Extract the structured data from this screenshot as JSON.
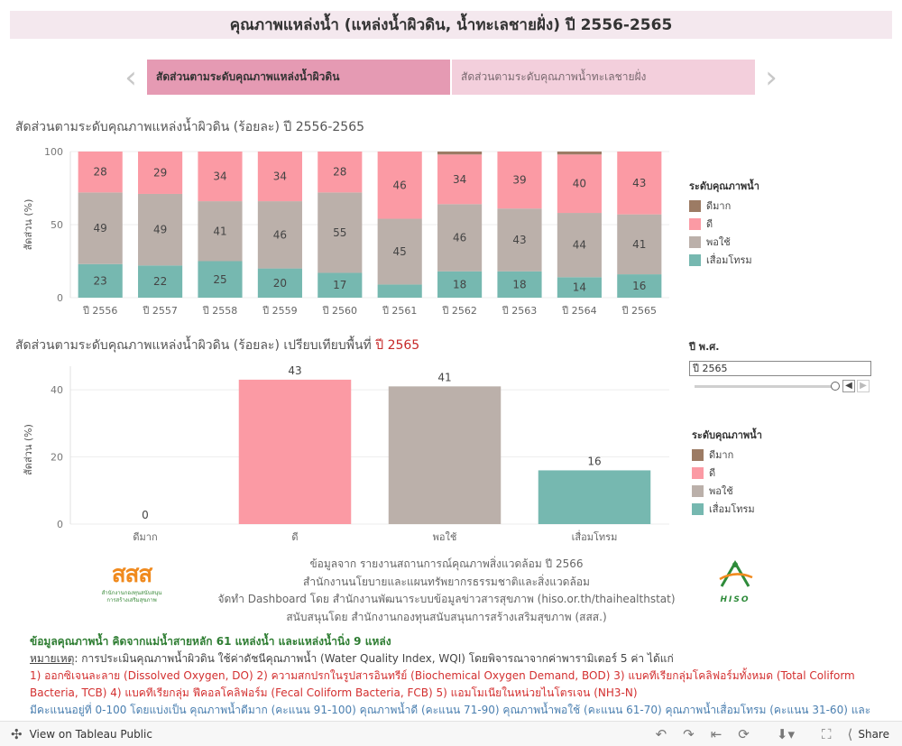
{
  "header": {
    "title": "คุณภาพแหล่งน้ำ (แหล่งน้ำผิวดิน, น้ำทะเลชายฝั่ง) ปี 2556-2565"
  },
  "nav": {
    "prev_icon": "chevron-left-icon",
    "next_icon": "chevron-right-icon",
    "tabs": [
      {
        "label": "สัดส่วนตามระดับคุณภาพแหล่งน้ำผิวดิน",
        "active": true
      },
      {
        "label": "สัดส่วนตามระดับคุณภาพน้ำทะเลชายฝั่ง",
        "active": false
      }
    ]
  },
  "colors": {
    "very_good": "#9c7b64",
    "good": "#fb9aa4",
    "fair": "#bbb0aa",
    "poor": "#76b8b0",
    "highlight": "#c62828",
    "title_bg": "#f4e8ee"
  },
  "chart1": {
    "title": "สัดส่วนตามระดับคุณภาพแหล่งน้ำผิวดิน (ร้อยละ) ปี 2556-2565"
  },
  "chart2": {
    "title_prefix": "สัดส่วนตามระดับคุณภาพแหล่งน้ำผิวดิน (ร้อยละ) เปรียบเทียบพื้นที่",
    "title_year": "ปี 2565"
  },
  "legend": {
    "title": "ระดับคุณภาพน้ำ",
    "items": [
      {
        "label": "ดีมาก",
        "color": "#9c7b64"
      },
      {
        "label": "ดี",
        "color": "#fb9aa4"
      },
      {
        "label": "พอใช้",
        "color": "#bbb0aa"
      },
      {
        "label": "เสื่อมโทรม",
        "color": "#76b8b0"
      }
    ]
  },
  "filter": {
    "label": "ปี พ.ศ.",
    "value": "ปี 2565",
    "prev_icon": "caret-left-icon",
    "next_icon": "caret-right-icon"
  },
  "chart_data": [
    {
      "type": "bar",
      "stacked": true,
      "title": "สัดส่วนตามระดับคุณภาพแหล่งน้ำผิวดิน (ร้อยละ) ปี 2556-2565",
      "ylabel": "สัดส่วน (%)",
      "ylim": [
        0,
        100
      ],
      "yticks": [
        0,
        50,
        100
      ],
      "grid": true,
      "legend": "right",
      "categories": [
        "ปี 2556",
        "ปี 2557",
        "ปี 2558",
        "ปี 2559",
        "ปี 2560",
        "ปี 2561",
        "ปี 2562",
        "ปี 2563",
        "ปี 2564",
        "ปี 2565"
      ],
      "series": [
        {
          "name": "เสื่อมโทรม",
          "color": "#76b8b0",
          "values": [
            23,
            22,
            25,
            20,
            17,
            9,
            18,
            18,
            14,
            16
          ],
          "labels": [
            "23",
            "22",
            "25",
            "20",
            "17",
            "",
            "18",
            "18",
            "14",
            "16"
          ]
        },
        {
          "name": "พอใช้",
          "color": "#bbb0aa",
          "values": [
            49,
            49,
            41,
            46,
            55,
            45,
            46,
            43,
            44,
            41
          ],
          "labels": [
            "49",
            "49",
            "41",
            "46",
            "55",
            "45",
            "46",
            "43",
            "44",
            "41"
          ]
        },
        {
          "name": "ดี",
          "color": "#fb9aa4",
          "values": [
            28,
            29,
            34,
            34,
            28,
            46,
            34,
            39,
            40,
            43
          ],
          "labels": [
            "28",
            "29",
            "34",
            "34",
            "28",
            "46",
            "34",
            "39",
            "40",
            "43"
          ]
        },
        {
          "name": "ดีมาก",
          "color": "#9c7b64",
          "values": [
            0,
            0,
            0,
            0,
            0,
            0,
            2,
            0,
            2,
            0
          ],
          "labels": [
            "",
            "",
            "",
            "",
            "",
            "",
            "",
            "",
            "",
            ""
          ]
        }
      ]
    },
    {
      "type": "bar",
      "title": "สัดส่วนตามระดับคุณภาพแหล่งน้ำผิวดิน (ร้อยละ) เปรียบเทียบพื้นที่ ปี 2565",
      "ylabel": "สัดส่วน (%)",
      "ylim": [
        0,
        47
      ],
      "yticks": [
        0,
        20,
        40
      ],
      "grid": true,
      "categories": [
        "ดีมาก",
        "ดี",
        "พอใช้",
        "เสื่อมโทรม"
      ],
      "values": [
        0,
        43,
        41,
        16
      ],
      "colors": [
        "#9c7b64",
        "#fb9aa4",
        "#bbb0aa",
        "#76b8b0"
      ]
    }
  ],
  "credits": {
    "lines": [
      "ข้อมูลจาก รายงานสถานการณ์คุณภาพสิ่งแวดล้อม ปี 2566",
      "สำนักงานนโยบายและแผนทรัพยากรธรรมชาติและสิ่งแวดล้อม",
      "จัดทำ Dashboard โดย สำนักงานพัฒนาระบบข้อมูลข่าวสารสุขภาพ (hiso.or.th/thaihealthstat)",
      "สนับสนุนโดย สำนักงานกองทุนสนับสนุนการสร้างเสริมสุขภาพ (สสส.)"
    ],
    "logo_left": {
      "text": "สสส",
      "sub1": "สำนักงานกองทุนสนับสนุน",
      "sub2": "การสร้างเสริมสุขภาพ"
    },
    "logo_right": {
      "text": "HISO"
    }
  },
  "notes": {
    "line1": "ข้อมูลคุณภาพน้ำ คิดจากแม่น้ำสายหลัก 61 แหล่งน้ำ และแหล่งน้ำนิ่ง 9 แหล่ง",
    "line2_label": "หมายเหตุ",
    "line2_text": ": การประเมินคุณภาพน้ำผิวดิน ใช้ค่าดัชนีคุณภาพน้ำ (Water Quality Index, WQI) โดยพิจารณาจากค่าพารามิเตอร์ 5 ค่า ได้แก่",
    "line3": "1) ออกซิเจนละลาย (Dissolved Oxygen, DO) 2) ความสกปรกในรูปสารอินทรีย์ (Biochemical Oxygen Demand, BOD) 3) แบคทีเรียกลุ่มโคลิฟอร์มทั้งหมด (Total Coliform",
    "line4": "Bacteria, TCB) 4) แบคทีเรียกลุ่ม ฟีคอลโคลิฟอร์ม (Fecal Coliform Bacteria, FCB) 5) แอมโมเนียในหน่วยไนโตรเจน (NH3-N)",
    "line5": "มีคะแนนอยู่ที่ 0-100 โดยแบ่งเป็น คุณภาพน้ำดีมาก (คะแนน 91-100) คุณภาพน้ำดี (คะแนน 71-90) คุณภาพน้ำพอใช้ (คะแนน 61-70) คุณภาพน้ำเสื่อมโทรม (คะแนน 31-60) และ"
  },
  "toolbar": {
    "view_label": "View on Tableau Public",
    "share_label": "Share",
    "icons": [
      "tableau-logo-icon",
      "undo-icon",
      "redo-icon",
      "revert-icon",
      "refresh-icon",
      "download-icon",
      "fullscreen-icon",
      "share-icon"
    ]
  }
}
